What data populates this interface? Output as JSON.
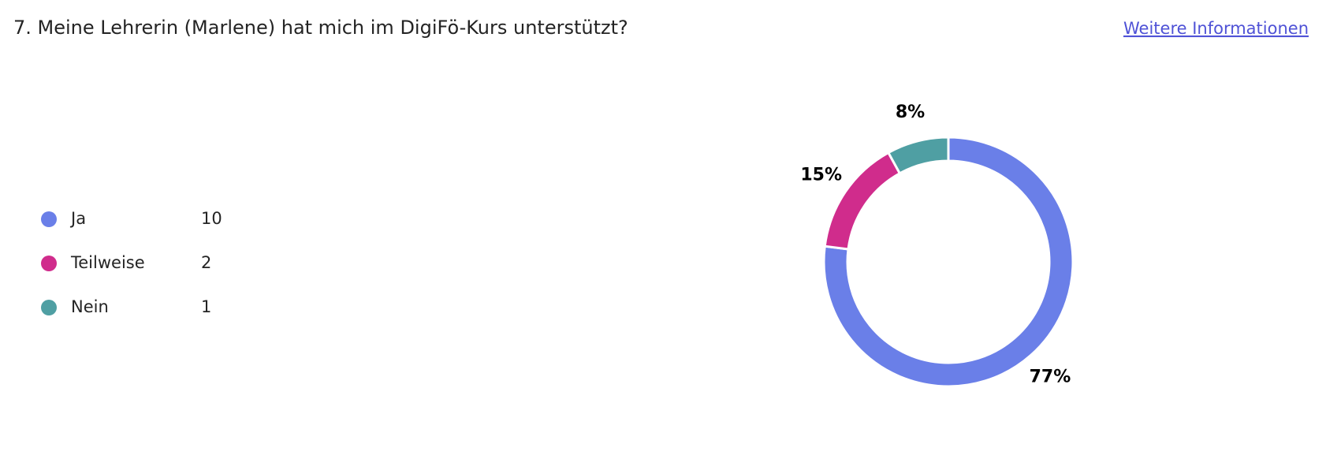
{
  "header": {
    "title": "7. Meine Lehrerin (Marlene) hat mich im DigiFö-Kurs unterstützt?",
    "link": "Weitere Informationen"
  },
  "chart_data": {
    "type": "donut",
    "categories": [
      "Ja",
      "Teilweise",
      "Nein"
    ],
    "counts": [
      10,
      2,
      1
    ],
    "values": [
      77,
      15,
      8
    ],
    "value_labels": [
      "77%",
      "15%",
      "8%"
    ],
    "colors": [
      "#6a7fe8",
      "#d02c8c",
      "#4f9fa3"
    ]
  }
}
